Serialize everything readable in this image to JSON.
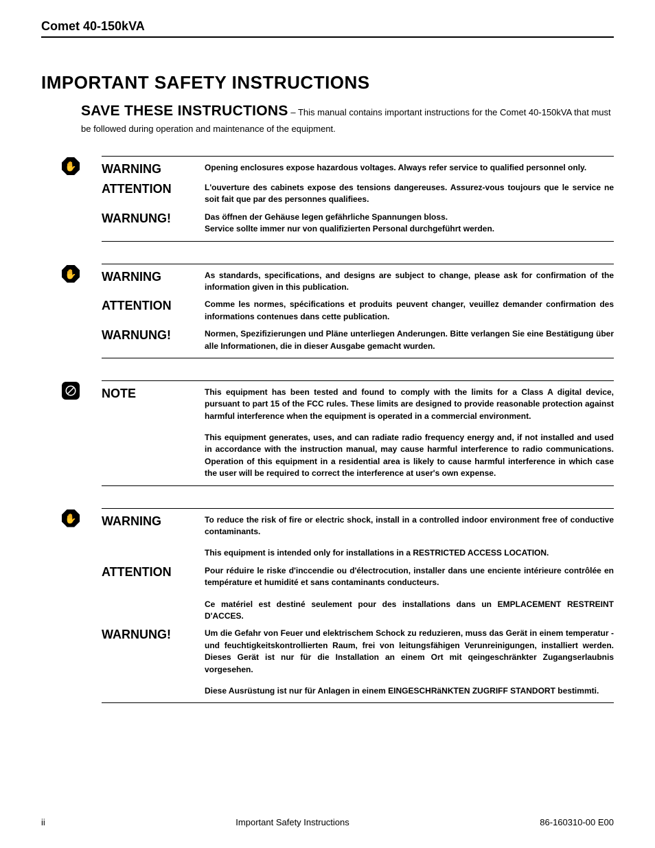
{
  "header": {
    "product": "Comet 40-150kVA"
  },
  "title": "IMPORTANT SAFETY INSTRUCTIONS",
  "subtitle": {
    "lead": "SAVE THESE INSTRUCTIONS",
    "rest": " – This manual contains important instructions for the Comet 40-150kVA that must be followed during operation and maintenance of the equipment."
  },
  "blocks": [
    {
      "icon": "stop",
      "rows": [
        {
          "label": "WARNING",
          "paras": [
            "Opening enclosures expose hazardous voltages. Always refer service to qualified personnel only."
          ]
        },
        {
          "label": "ATTENTION",
          "paras": [
            "L'ouverture des cabinets expose des tensions dangereuses.  Assurez-vous toujours que le service ne soit fait que par des personnes qualifiees."
          ]
        },
        {
          "label": "WARNUNG!",
          "paras": [
            "Das öffnen der Gehäuse legen gefährliche Spannungen bloss.\nService sollte immer nur von qualifizierten Personal durchgeführt werden."
          ]
        }
      ]
    },
    {
      "icon": "stop",
      "rows": [
        {
          "label": "WARNING",
          "paras": [
            "As standards, specifications, and designs are subject to change, please ask for confirmation of the information given in this publication."
          ]
        },
        {
          "label": "ATTENTION",
          "paras": [
            "Comme les normes, spécifications et produits peuvent changer, veuillez demander confirmation des informations contenues dans cette publication."
          ]
        },
        {
          "label": "WARNUNG!",
          "paras": [
            "Normen, Spezifizierungen und Pläne unterliegen Anderungen.  Bitte verlangen Sie eine Bestätigung über alle Informationen, die in dieser Ausgabe gemacht wurden."
          ]
        }
      ]
    },
    {
      "icon": "note",
      "rows": [
        {
          "label": "NOTE",
          "paras": [
            "This equipment has been tested and found to comply with the limits for a Class A digital device, pursuant to part 15 of the FCC rules. These limits are designed to provide reasonable protection against harmful interference when the equipment is operated in a commercial environment.",
            "This equipment generates, uses, and can radiate radio frequency energy and, if not installed and used in accordance with the instruction manual, may cause harmful interference to radio communications.  Operation of this equipment in a residential area is likely to cause harmful interference in which case the user will be required to correct the interference at user's own expense."
          ]
        }
      ]
    },
    {
      "icon": "stop",
      "rows": [
        {
          "label": "WARNING",
          "paras": [
            "To reduce the risk of fire or electric shock, install in a controlled indoor environment free of conductive contaminants.",
            "This equipment is intended only for installations in a RESTRICTED ACCESS LOCATION."
          ]
        },
        {
          "label": "ATTENTION",
          "paras": [
            "Pour réduire le riske d'inccendie ou d'électrocution, installer dans une enciente intérieure contrôlée en température et humidité et sans contaminants conducteurs.",
            "Ce matériel est destiné seulement pour des installations dans un EMPLACEMENT RESTREINT D'ACCES."
          ]
        },
        {
          "label": "WARNUNG!",
          "paras": [
            "Um die Gefahr von Feuer und elektrischem Schock zu reduzieren, muss das Gerät in einem temperatur - und feuchtigkeitskontrollierten Raum, frei von leitungsfähigen Verunreinigungen, installiert werden.  Dieses Gerät ist nur für die Installation an einem Ort mit qeingeschränkter Zugangserlaubnis vorgesehen.",
            "Diese Ausrüstung ist nur für Anlagen in einem EINGESCHRäNKTEN ZUGRIFF STANDORT bestimmti."
          ]
        }
      ]
    }
  ],
  "footer": {
    "left": "ii",
    "center": "Important Safety Instructions",
    "right": "86-160310-00 E00"
  }
}
